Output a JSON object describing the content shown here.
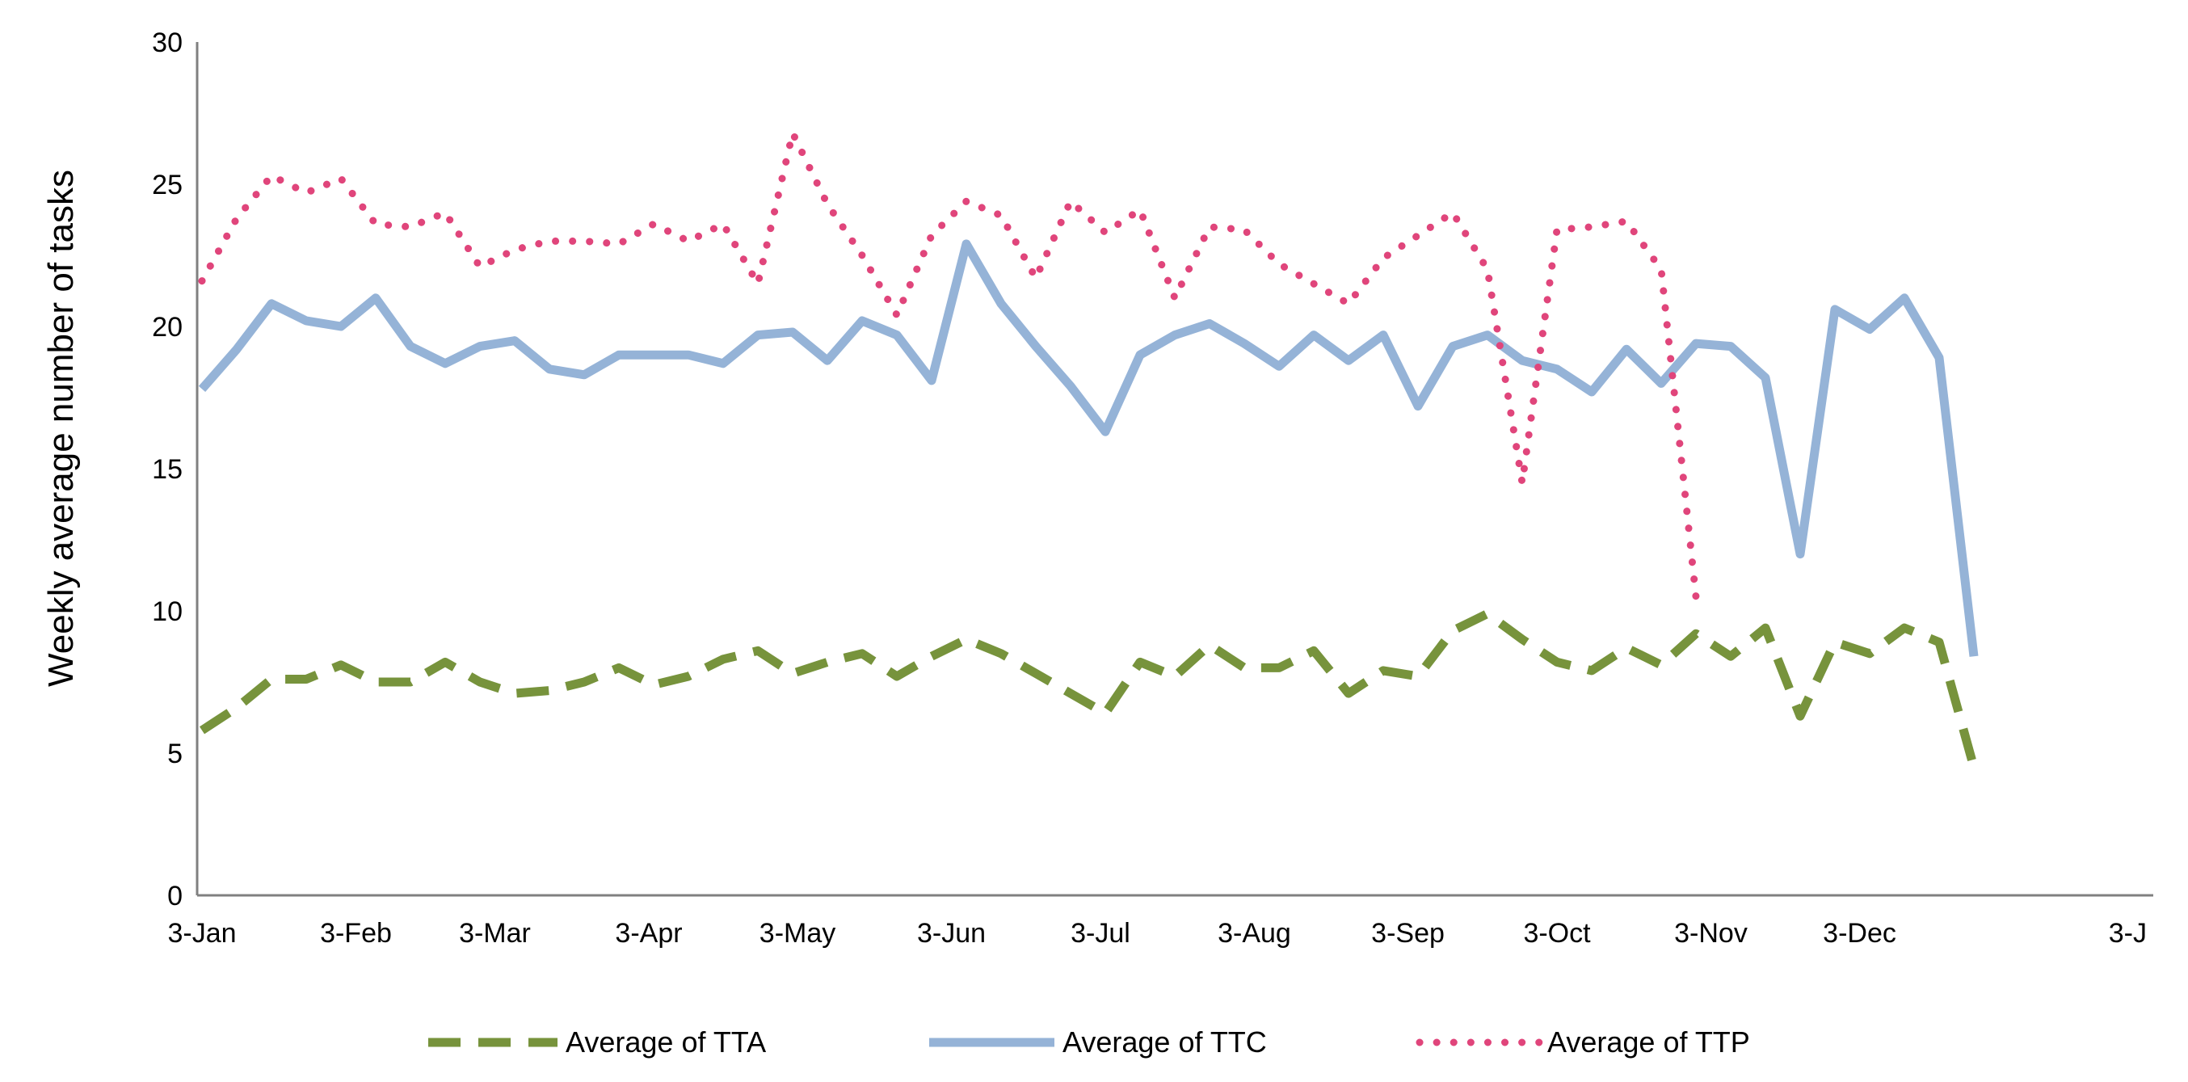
{
  "chart_data": {
    "type": "line",
    "title": "",
    "xlabel": "",
    "ylabel": "Weekly average number of tasks",
    "ylim": [
      0,
      30
    ],
    "yticks": [
      0,
      5,
      10,
      15,
      20,
      25,
      30
    ],
    "x_tick_labels": [
      "3-Jan",
      "3-Feb",
      "3-Mar",
      "3-Apr",
      "3-May",
      "3-Jun",
      "3-Jul",
      "3-Aug",
      "3-Sep",
      "3-Oct",
      "3-Nov",
      "3-Dec",
      "3-J"
    ],
    "x_tick_weeks": [
      0,
      4.43,
      8.43,
      12.86,
      17.14,
      21.57,
      25.86,
      30.29,
      34.71,
      39,
      43.43,
      47.71,
      52.14
    ],
    "x_range_weeks": [
      0,
      53.4
    ],
    "grid": false,
    "legend_position": "bottom",
    "series": [
      {
        "name": "Average of TTA",
        "color": "#77933c",
        "dash": "dashed",
        "weeks": [
          0,
          1,
          2,
          3,
          4,
          5,
          6,
          7,
          8,
          9,
          10,
          11,
          12,
          13,
          14,
          15,
          16,
          17,
          18,
          19,
          20,
          21,
          22,
          23,
          24,
          25,
          26,
          27,
          28,
          29,
          30,
          31,
          32,
          33,
          34,
          35,
          36,
          37,
          38,
          39,
          40,
          41,
          42,
          43,
          44,
          45,
          46,
          47,
          48,
          49,
          50,
          51
        ],
        "values": [
          5.8,
          6.6,
          7.6,
          7.6,
          8.1,
          7.5,
          7.5,
          8.2,
          7.5,
          7.1,
          7.2,
          7.5,
          8.0,
          7.4,
          7.7,
          8.3,
          8.6,
          7.8,
          8.2,
          8.5,
          7.7,
          8.4,
          9.0,
          8.5,
          7.8,
          7.1,
          6.4,
          8.2,
          7.7,
          8.8,
          8.0,
          8.0,
          8.6,
          7.1,
          7.9,
          7.7,
          9.3,
          9.9,
          9.0,
          8.2,
          7.9,
          8.7,
          8.1,
          9.2,
          8.4,
          9.4,
          6.3,
          8.9,
          8.5,
          9.4,
          8.9,
          4.5
        ]
      },
      {
        "name": "Average of TTC",
        "color": "#95b3d7",
        "dash": "solid",
        "weeks": [
          0,
          1,
          2,
          3,
          4,
          5,
          6,
          7,
          8,
          9,
          10,
          11,
          12,
          13,
          14,
          15,
          16,
          17,
          18,
          19,
          20,
          21,
          22,
          23,
          24,
          25,
          26,
          27,
          28,
          29,
          30,
          31,
          32,
          33,
          34,
          35,
          36,
          37,
          38,
          39,
          40,
          41,
          42,
          43,
          44,
          45,
          46,
          47,
          48,
          49,
          50,
          51
        ],
        "values": [
          17.8,
          19.2,
          20.8,
          20.2,
          20.0,
          21.0,
          19.3,
          18.7,
          19.3,
          19.5,
          18.5,
          18.3,
          19.0,
          19.0,
          19.0,
          18.7,
          19.7,
          19.8,
          18.8,
          20.2,
          19.7,
          18.1,
          22.9,
          20.8,
          19.3,
          17.9,
          16.3,
          19.0,
          19.7,
          20.1,
          19.4,
          18.6,
          19.7,
          18.8,
          19.7,
          17.2,
          19.3,
          19.7,
          18.8,
          18.5,
          17.7,
          19.2,
          18.0,
          19.4,
          19.3,
          18.2,
          12.0,
          20.6,
          19.9,
          21.0,
          18.9,
          8.4
        ]
      },
      {
        "name": "Average of TTP",
        "color": "#e0457b",
        "dash": "dotted",
        "weeks": [
          0,
          1,
          2,
          3,
          4,
          5,
          6,
          7,
          8,
          9,
          10,
          11,
          12,
          13,
          14,
          15,
          16,
          17,
          18,
          19,
          20,
          21,
          22,
          23,
          24,
          25,
          26,
          27,
          28,
          29,
          30,
          31,
          32,
          33,
          34,
          35,
          36,
          37,
          38,
          39,
          40,
          41,
          42,
          43,
          44,
          45,
          46,
          47,
          48,
          49,
          50,
          51
        ],
        "values": [
          21.6,
          23.8,
          25.3,
          24.7,
          25.2,
          23.6,
          23.5,
          24.0,
          22.1,
          22.7,
          23.0,
          23.0,
          22.9,
          23.6,
          23.0,
          23.6,
          21.5,
          26.8,
          24.3,
          22.5,
          20.4,
          23.2,
          24.4,
          23.9,
          21.7,
          24.4,
          23.3,
          24.1,
          21.0,
          23.5,
          23.4,
          22.2,
          21.5,
          20.8,
          22.4,
          23.2,
          24.0,
          22.0,
          14.5,
          23.4,
          23.5,
          23.7,
          22.0,
          10.5,
          null,
          null,
          null,
          null,
          null,
          null,
          null,
          null
        ]
      }
    ]
  }
}
